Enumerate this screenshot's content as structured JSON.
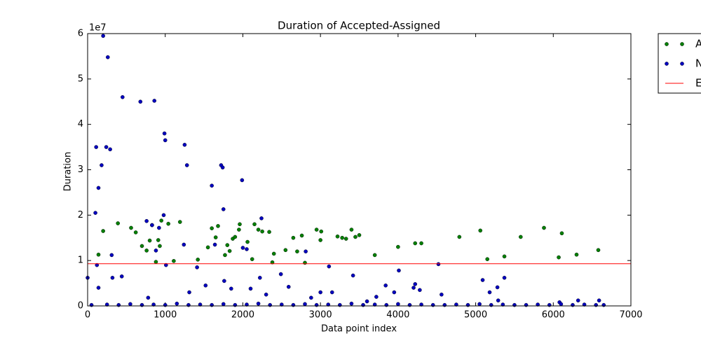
{
  "chart_data": {
    "type": "scatter",
    "title": "Duration of Accepted-Assigned",
    "x_label": "Data point index",
    "y_label": "Duration",
    "y_offset_text": "1e7",
    "xlim": [
      0,
      7000
    ],
    "xticks": [
      0,
      1000,
      2000,
      3000,
      4000,
      5000,
      6000,
      7000
    ],
    "ylim": [
      0,
      6
    ],
    "yticks": [
      0,
      1,
      2,
      3,
      4,
      5,
      6
    ],
    "legend_position": "outside-right",
    "series": [
      {
        "name": "A",
        "color": "#007f00",
        "kind": "points",
        "x": [
          200,
          140,
          390,
          560,
          620,
          700,
          760,
          800,
          830,
          880,
          910,
          930,
          950,
          1040,
          1110,
          1190,
          1420,
          1550,
          1600,
          1650,
          1680,
          1770,
          1800,
          1830,
          1870,
          1900,
          1950,
          1960,
          2060,
          2120,
          2150,
          2200,
          2250,
          2340,
          2380,
          2400,
          2550,
          2650,
          2700,
          2760,
          2800,
          2950,
          3000,
          3010,
          3220,
          3280,
          3330,
          3400,
          3450,
          3500,
          3700,
          4000,
          4220,
          4300,
          4790,
          5060,
          5150,
          5370,
          5580,
          5880,
          6070,
          6110,
          6300,
          6580
        ],
        "values": [
          1.65,
          1.13,
          1.82,
          1.72,
          1.62,
          1.32,
          1.22,
          1.44,
          1.78,
          0.97,
          1.45,
          1.32,
          1.88,
          1.81,
          0.99,
          1.85,
          1.02,
          1.29,
          1.71,
          1.51,
          1.76,
          1.12,
          1.34,
          1.21,
          1.48,
          1.52,
          1.68,
          1.8,
          1.41,
          1.03,
          1.8,
          1.68,
          1.64,
          1.63,
          0.96,
          1.15,
          1.23,
          1.5,
          1.2,
          1.55,
          0.95,
          1.68,
          1.45,
          1.64,
          1.53,
          1.5,
          1.48,
          1.68,
          1.52,
          1.56,
          1.12,
          1.3,
          1.38,
          1.38,
          1.52,
          1.66,
          1.03,
          1.09,
          1.52,
          1.72,
          1.07,
          1.6,
          1.13,
          1.23
        ]
      },
      {
        "name": "N",
        "color": "#0000bf",
        "kind": "points",
        "x": [
          0,
          100,
          120,
          110,
          140,
          180,
          200,
          240,
          260,
          290,
          310,
          320,
          140,
          450,
          440,
          680,
          860,
          990,
          1000,
          980,
          760,
          830,
          880,
          920,
          1010,
          1250,
          1280,
          1240,
          1410,
          1600,
          1640,
          1720,
          1740,
          1750,
          1990,
          2000,
          2050,
          2240,
          2220,
          2490,
          2590,
          2810,
          3110,
          3420,
          3840,
          4010,
          4220,
          4520,
          4560,
          5090,
          5180,
          5280,
          5370,
          6080,
          6320,
          6590,
          780,
          1310,
          1520,
          1760,
          1850,
          2100,
          2300,
          2880,
          3000,
          3150,
          3600,
          3720,
          3950,
          4200,
          4280,
          5290,
          50,
          250,
          400,
          550,
          700,
          850,
          1000,
          1150,
          1300,
          1450,
          1600,
          1750,
          1900,
          2050,
          2200,
          2350,
          2500,
          2650,
          2800,
          2950,
          3100,
          3250,
          3400,
          3550,
          3700,
          3850,
          4000,
          4150,
          4300,
          4450,
          4600,
          4750,
          4900,
          5050,
          5200,
          5350,
          5500,
          5650,
          5800,
          5950,
          6100,
          6250,
          6400,
          6550,
          6650
        ],
        "values": [
          0.62,
          2.05,
          0.9,
          3.5,
          2.6,
          3.1,
          5.95,
          3.5,
          5.48,
          3.45,
          1.12,
          0.62,
          0.4,
          4.6,
          0.65,
          4.5,
          4.52,
          3.8,
          3.65,
          2.0,
          1.87,
          1.78,
          1.22,
          1.72,
          0.9,
          3.55,
          3.1,
          1.35,
          0.85,
          2.65,
          1.35,
          3.1,
          3.05,
          2.13,
          2.77,
          1.28,
          1.25,
          1.93,
          0.62,
          0.7,
          0.42,
          1.2,
          0.87,
          0.67,
          0.45,
          0.78,
          0.48,
          0.92,
          0.25,
          0.57,
          0.3,
          0.41,
          0.62,
          0.08,
          0.12,
          0.12,
          0.18,
          0.3,
          0.45,
          0.55,
          0.38,
          0.38,
          0.25,
          0.18,
          0.3,
          0.3,
          0.1,
          0.2,
          0.3,
          0.4,
          0.35,
          0.12,
          0.02,
          0.03,
          0.02,
          0.04,
          0.02,
          0.03,
          0.02,
          0.05,
          0.02,
          0.03,
          0.02,
          0.04,
          0.02,
          0.03,
          0.05,
          0.02,
          0.03,
          0.02,
          0.04,
          0.02,
          0.03,
          0.02,
          0.05,
          0.02,
          0.03,
          0.02,
          0.04,
          0.02,
          0.03,
          0.02,
          0.02,
          0.03,
          0.02,
          0.04,
          0.02,
          0.03,
          0.02,
          0.02,
          0.03,
          0.02,
          0.04,
          0.02,
          0.03,
          0.02,
          0.02
        ]
      },
      {
        "name": "E",
        "color": "#ff0000",
        "kind": "hline",
        "value": 0.93
      }
    ]
  }
}
